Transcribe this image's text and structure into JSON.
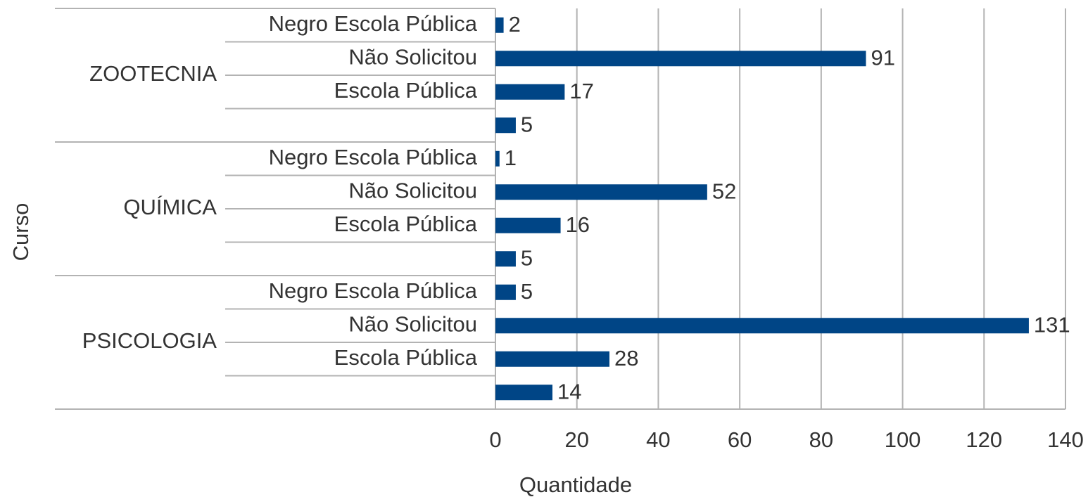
{
  "chart_data": {
    "type": "bar",
    "orientation": "horizontal",
    "xlabel": "Quantidade",
    "ylabel": "Curso",
    "color": "#004586",
    "groups": [
      {
        "name": "ZOOTECNIA",
        "categories": [
          "Negro Escola Pública",
          "Não Solicitou",
          "Escola Pública",
          null
        ],
        "values": [
          2,
          91,
          17,
          5
        ]
      },
      {
        "name": "QUÍMICA",
        "categories": [
          "Negro Escola Pública",
          "Não Solicitou",
          "Escola Pública",
          null
        ],
        "values": [
          1,
          52,
          16,
          5
        ]
      },
      {
        "name": "PSICOLOGIA",
        "categories": [
          "Negro Escola Pública",
          "Não Solicitou",
          "Escola Pública",
          null
        ],
        "values": [
          5,
          131,
          28,
          14
        ]
      }
    ],
    "xlim": [
      0,
      140
    ],
    "xticks": [
      0,
      20,
      40,
      60,
      80,
      100,
      120,
      140
    ],
    "grid": true
  }
}
